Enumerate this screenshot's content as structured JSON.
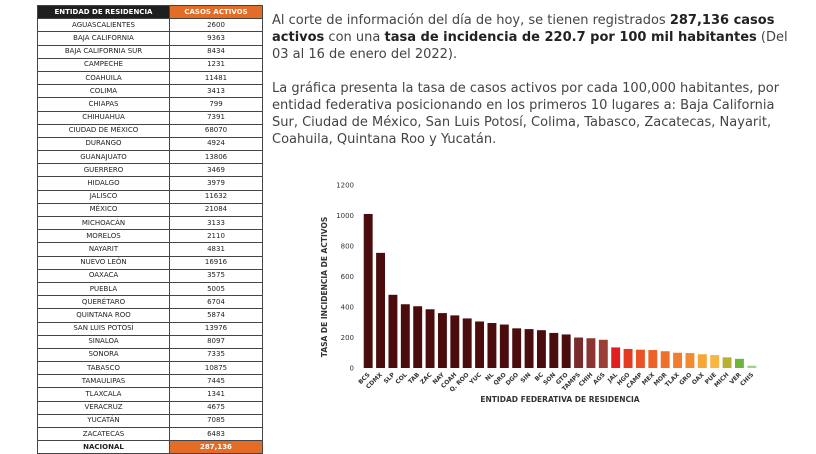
{
  "table": {
    "header": {
      "state": "ENTIDAD DE RESIDENCIA",
      "cases": "CASOS ACTIVOS"
    },
    "rows": [
      {
        "state": "AGUASCALIENTES",
        "cases": "2600"
      },
      {
        "state": "BAJA CALIFORNIA",
        "cases": "9363"
      },
      {
        "state": "BAJA CALIFORNIA SUR",
        "cases": "8434"
      },
      {
        "state": "CAMPECHE",
        "cases": "1231"
      },
      {
        "state": "COAHUILA",
        "cases": "11481"
      },
      {
        "state": "COLIMA",
        "cases": "3413"
      },
      {
        "state": "CHIAPAS",
        "cases": "799"
      },
      {
        "state": "CHIHUAHUA",
        "cases": "7391"
      },
      {
        "state": "CIUDAD DE MÉXICO",
        "cases": "68070"
      },
      {
        "state": "DURANGO",
        "cases": "4924"
      },
      {
        "state": "GUANAJUATO",
        "cases": "13806"
      },
      {
        "state": "GUERRERO",
        "cases": "3469"
      },
      {
        "state": "HIDALGO",
        "cases": "3979"
      },
      {
        "state": "JALISCO",
        "cases": "11632"
      },
      {
        "state": "MÉXICO",
        "cases": "21084"
      },
      {
        "state": "MICHOACÁN",
        "cases": "3133"
      },
      {
        "state": "MORELOS",
        "cases": "2110"
      },
      {
        "state": "NAYARIT",
        "cases": "4831"
      },
      {
        "state": "NUEVO LEÓN",
        "cases": "16916"
      },
      {
        "state": "OAXACA",
        "cases": "3575"
      },
      {
        "state": "PUEBLA",
        "cases": "5005"
      },
      {
        "state": "QUERÉTARO",
        "cases": "6704"
      },
      {
        "state": "QUINTANA ROO",
        "cases": "5874"
      },
      {
        "state": "SAN LUIS POTOSÍ",
        "cases": "13976"
      },
      {
        "state": "SINALOA",
        "cases": "8097"
      },
      {
        "state": "SONORA",
        "cases": "7335"
      },
      {
        "state": "TABASCO",
        "cases": "10875"
      },
      {
        "state": "TAMAULIPAS",
        "cases": "7445"
      },
      {
        "state": "TLAXCALA",
        "cases": "1341"
      },
      {
        "state": "VERACRUZ",
        "cases": "4675"
      },
      {
        "state": "YUCATÁN",
        "cases": "7085"
      },
      {
        "state": "ZACATECAS",
        "cases": "6483"
      }
    ],
    "total": {
      "state": "NACIONAL",
      "cases": "287,136"
    }
  },
  "text": {
    "p1_a": "Al corte de información del día de hoy, se tienen registrados ",
    "p1_b": "287,136 casos activos",
    "p1_c": " con una ",
    "p1_d": "tasa de incidencia de 220.7 por 100 mil habitantes",
    "p1_e": " (Del 03 al 16 de enero del 2022).",
    "p2": "La gráfica presenta la tasa de casos activos por cada 100,000 habitantes, por entidad federativa posicionando en los primeros 10 lugares a: Baja California Sur, Ciudad de México, San Luis Potosí, Colima, Tabasco, Zacatecas, Nayarit, Coahuila, Quintana Roo y Yucatán."
  },
  "chart_data": {
    "type": "bar",
    "title": "",
    "xlabel": "ENTIDAD FEDERATIVA DE RESIDENCIA",
    "ylabel": "TASA DE INCIDENCIA DE ACTIVOS",
    "ylim": [
      0,
      1200
    ],
    "yticks": [
      "0",
      "200",
      "400",
      "600",
      "800",
      "1000",
      "1200"
    ],
    "grid": false,
    "categories": [
      "BCS",
      "CDMX",
      "SLP",
      "COL",
      "TAB",
      "ZAC",
      "NAY",
      "COAH",
      "Q. ROO",
      "YUC",
      "NL",
      "QRO",
      "DGO",
      "SIN",
      "BC",
      "SON",
      "GTO",
      "TAMPS",
      "CHIH",
      "AGS",
      "JAL",
      "HGO",
      "CAMP",
      "MEX",
      "MOR",
      "TLAX",
      "GRO",
      "OAX",
      "PUE",
      "MICH",
      "VER",
      "CHIS"
    ],
    "values": [
      1010,
      755,
      480,
      418,
      405,
      385,
      360,
      345,
      325,
      305,
      295,
      285,
      260,
      255,
      248,
      230,
      220,
      200,
      195,
      185,
      135,
      125,
      120,
      118,
      110,
      100,
      98,
      90,
      85,
      70,
      60,
      15
    ],
    "colors": [
      "#4a0c0c",
      "#4a0c0c",
      "#4a0c0c",
      "#4a0c0c",
      "#4a0c0c",
      "#4a0c0c",
      "#4a0c0c",
      "#4a0c0c",
      "#4a0c0c",
      "#4a0c0c",
      "#4a0c0c",
      "#4a0c0c",
      "#4a0c0c",
      "#4a0c0c",
      "#4a0c0c",
      "#4a0c0c",
      "#4a0c0c",
      "#7a2a2a",
      "#8a3530",
      "#9a3f35",
      "#e02020",
      "#e53a22",
      "#ea5125",
      "#ee6128",
      "#f0702b",
      "#f27d2e",
      "#f48a30",
      "#f7a535",
      "#f7b640",
      "#b8b030",
      "#6eb53a",
      "#9cd486"
    ]
  }
}
